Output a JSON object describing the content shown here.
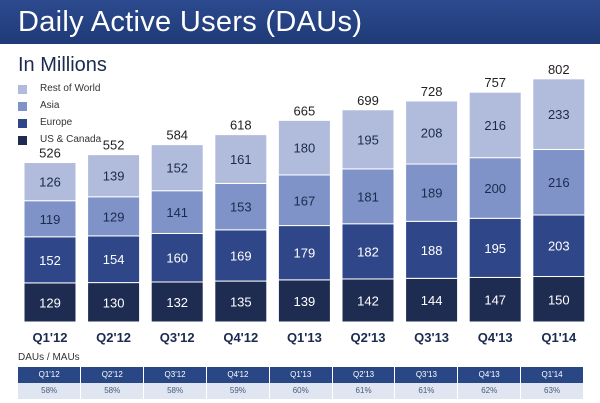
{
  "page": {
    "title": "Daily Active Users (DAUs)",
    "subtitle": "In Millions"
  },
  "colors": {
    "header_bg": "#2a4785",
    "us_canada": "#1f2c52",
    "europe": "#2f4789",
    "asia": "#7f93c8",
    "rest_of_world": "#b1bcdd",
    "table_value_bg": "#dfe5f1"
  },
  "chart_data": {
    "type": "bar",
    "stacked": true,
    "title": "Daily Active Users (DAUs)",
    "subtitle": "In Millions",
    "categories": [
      "Q1'12",
      "Q2'12",
      "Q3'12",
      "Q4'12",
      "Q1'13",
      "Q2'13",
      "Q3'13",
      "Q4'13",
      "Q1'14"
    ],
    "series": [
      {
        "name": "US & Canada",
        "values": [
          129,
          130,
          132,
          135,
          139,
          142,
          144,
          147,
          150
        ]
      },
      {
        "name": "Europe",
        "values": [
          152,
          154,
          160,
          169,
          179,
          182,
          188,
          195,
          203
        ]
      },
      {
        "name": "Asia",
        "values": [
          119,
          129,
          141,
          153,
          167,
          181,
          189,
          200,
          216
        ]
      },
      {
        "name": "Rest of World",
        "values": [
          126,
          139,
          152,
          161,
          180,
          195,
          208,
          216,
          233
        ]
      }
    ],
    "totals": [
      526,
      552,
      584,
      618,
      665,
      699,
      728,
      757,
      802
    ],
    "ylim": [
      0,
      802
    ],
    "legend_position": "top-left",
    "legend": [
      "Rest of World",
      "Asia",
      "Europe",
      "US & Canada"
    ],
    "grid": false
  },
  "ratio_table": {
    "title": "DAUs / MAUs",
    "headers": [
      "Q1'12",
      "Q2'12",
      "Q3'12",
      "Q4'12",
      "Q1'13",
      "Q2'13",
      "Q3'13",
      "Q4'13",
      "Q1'14"
    ],
    "values": [
      "58%",
      "58%",
      "58%",
      "59%",
      "60%",
      "61%",
      "61%",
      "62%",
      "63%"
    ]
  }
}
